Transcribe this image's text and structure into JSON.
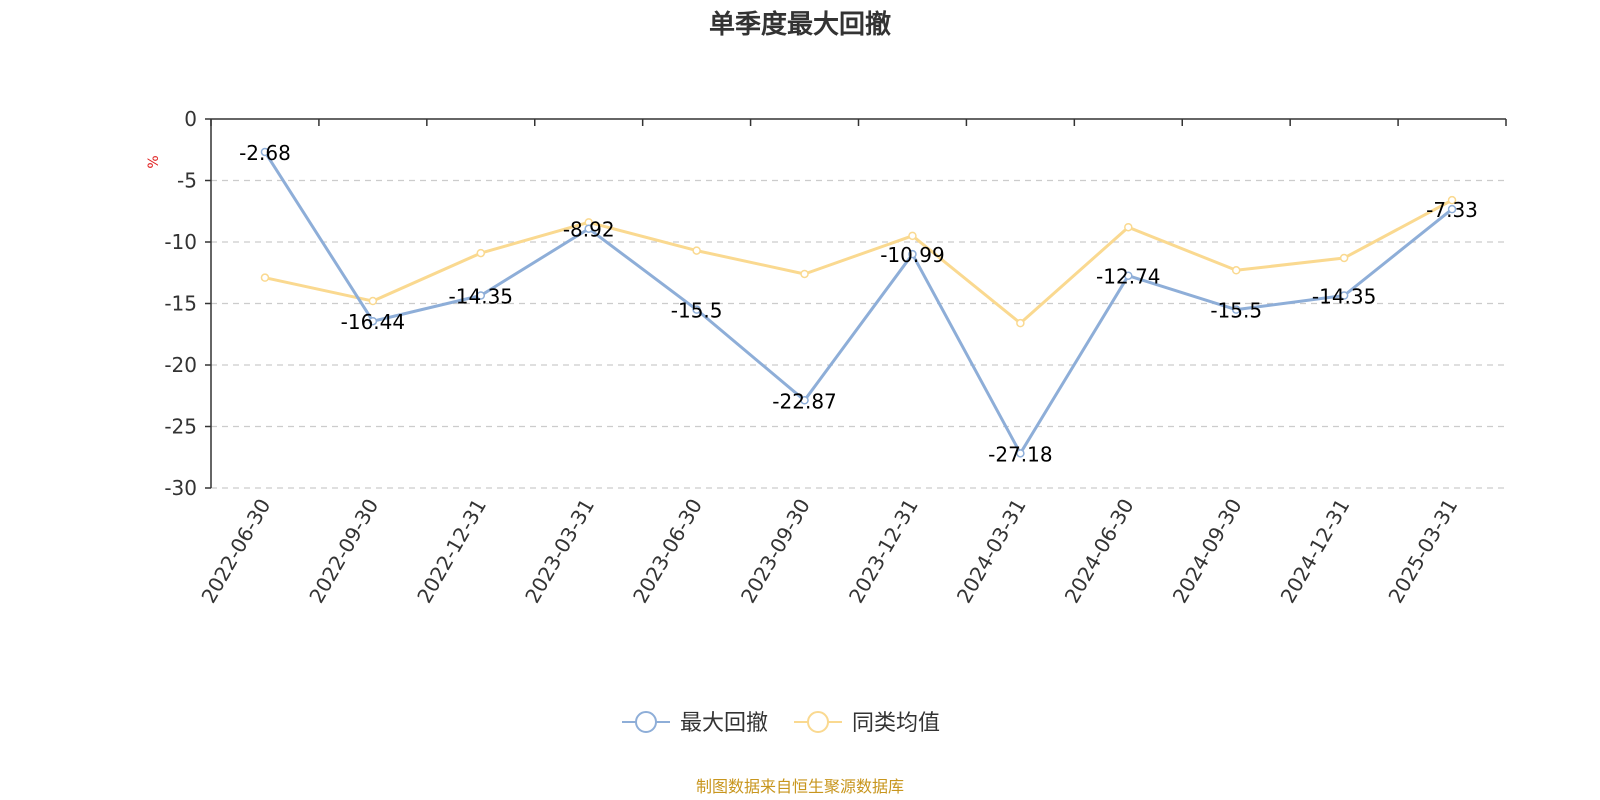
{
  "chart_data": {
    "type": "line",
    "title": "单季度最大回撤",
    "ylabel": "%",
    "ylim": [
      -30,
      0
    ],
    "yticks": [
      0,
      -5,
      -10,
      -15,
      -20,
      -25,
      -30
    ],
    "grid": true,
    "legend_position": "bottom",
    "categories": [
      "2022-06-30",
      "2022-09-30",
      "2022-12-31",
      "2023-03-31",
      "2023-06-30",
      "2023-09-30",
      "2023-12-31",
      "2024-03-31",
      "2024-06-30",
      "2024-09-30",
      "2024-12-31",
      "2025-03-31"
    ],
    "series": [
      {
        "name": "最大回撤",
        "color": "#8eaed8",
        "values": [
          -2.68,
          -16.44,
          -14.35,
          -8.92,
          -15.5,
          -22.87,
          -10.99,
          -27.18,
          -12.74,
          -15.5,
          -14.35,
          -7.33
        ],
        "show_labels": true
      },
      {
        "name": "同类均值",
        "color": "#fad990",
        "values": [
          -12.9,
          -14.8,
          -10.9,
          -8.4,
          -10.7,
          -12.6,
          -9.5,
          -16.6,
          -8.8,
          -12.3,
          -11.3,
          -6.6
        ],
        "show_labels": false
      }
    ],
    "source": "制图数据来自恒生聚源数据库"
  },
  "colors": {
    "ylabel": "#e02020",
    "source": "#c8961e",
    "axis": "#333333",
    "grid": "#cccccc"
  }
}
